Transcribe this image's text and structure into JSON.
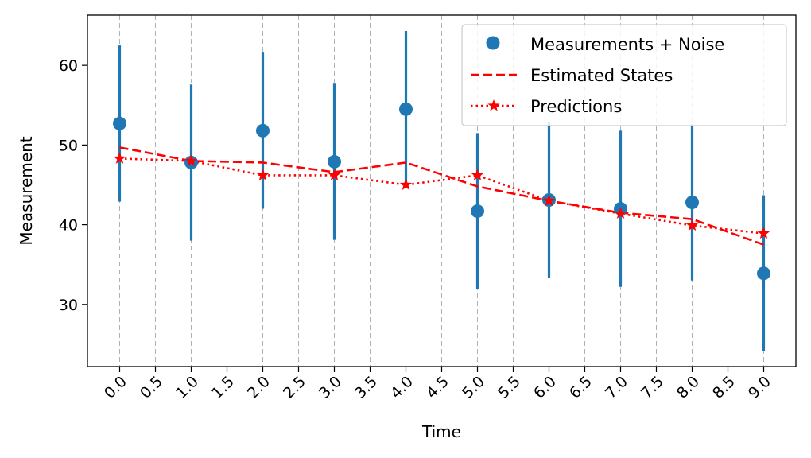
{
  "chart_data": {
    "type": "scatter",
    "xlabel": "Time",
    "ylabel": "Measurement",
    "xlim": [
      -0.45,
      9.45
    ],
    "ylim": [
      22.2,
      66.3
    ],
    "x_ticks": [
      "0.0",
      "0.5",
      "1.0",
      "1.5",
      "2.0",
      "2.5",
      "3.0",
      "3.5",
      "4.0",
      "4.5",
      "5.0",
      "5.5",
      "6.0",
      "6.5",
      "7.0",
      "7.5",
      "8.0",
      "8.5",
      "9.0"
    ],
    "y_ticks": [
      "30",
      "40",
      "50",
      "60"
    ],
    "grid": "x-dashed",
    "legend_position": "top-right",
    "x": [
      0,
      1,
      2,
      3,
      4,
      5,
      6,
      7,
      8,
      9
    ],
    "series": [
      {
        "name": "Measurements + Noise",
        "kind": "scatter-errorbar",
        "color": "#1f77b4",
        "values": [
          52.7,
          47.8,
          51.8,
          47.9,
          54.5,
          41.7,
          43.1,
          42.0,
          42.8,
          33.9
        ],
        "error": 9.8
      },
      {
        "name": "Estimated States",
        "kind": "line-dashed",
        "color": "#ff0000",
        "values": [
          49.7,
          48.0,
          47.8,
          46.6,
          47.8,
          44.8,
          43.0,
          41.5,
          40.7,
          37.5
        ]
      },
      {
        "name": "Predictions",
        "kind": "line-dotted-star",
        "color": "#ff0000",
        "values": [
          48.3,
          48.0,
          46.2,
          46.2,
          45.0,
          46.2,
          43.0,
          41.4,
          39.9,
          38.9
        ]
      }
    ]
  }
}
